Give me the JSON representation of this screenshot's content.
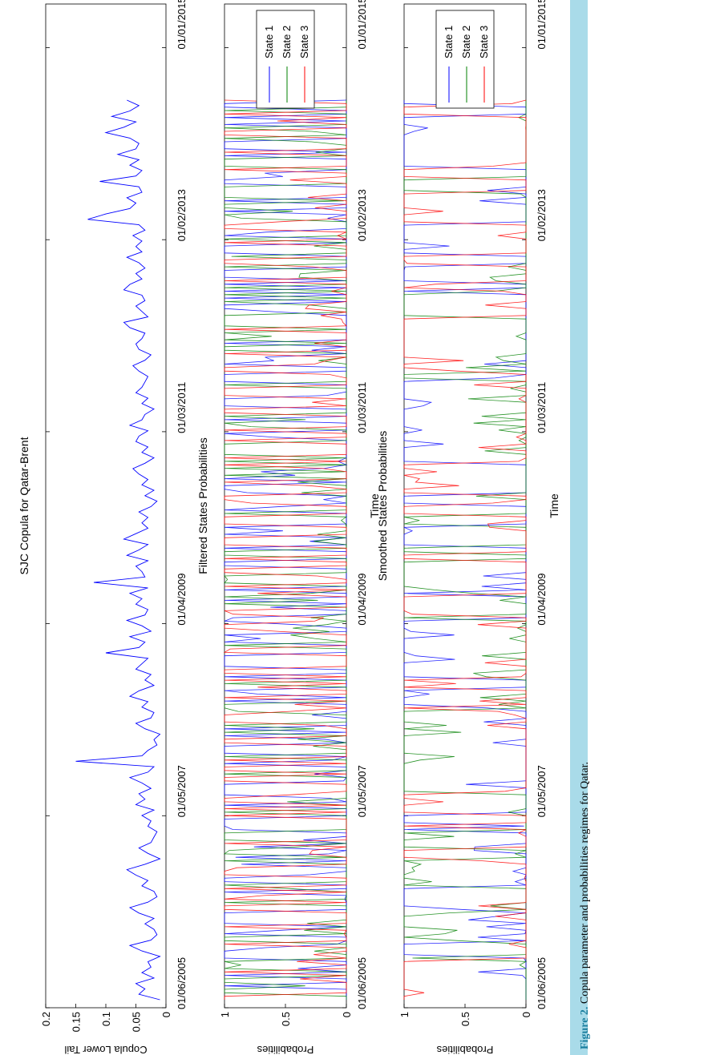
{
  "caption": {
    "label": "Figure 2.",
    "text": " Copula parameter and probabilities regimes for Qatar."
  },
  "colors": {
    "state1": "#0000ff",
    "state2": "#008000",
    "state3": "#ff0000",
    "copula_line": "#0000ff",
    "caption_bar": "#a9dbe9"
  },
  "chart_data": [
    {
      "type": "line",
      "title": "SJC Copula for Qatar-Brent",
      "xlabel": "",
      "ylabel": "Copula Lower Tail",
      "ylim": [
        0,
        0.2
      ],
      "yticks": [
        "0.2",
        "0.15",
        "0.1",
        "0.05",
        "0"
      ],
      "xticks": [
        "01/06/2005",
        "01/05/2007",
        "01/04/2009",
        "01/03/2011",
        "01/02/2013",
        "01/01/2015"
      ],
      "grid": false,
      "rotated": "90deg-counterclockwise",
      "series": [
        {
          "x_start": "01/06/2005",
          "x_end": "01/01/2015",
          "values": [
            0.01,
            0.045,
            0.035,
            0.05,
            0.02,
            0.04,
            0.025,
            0.03,
            0.01,
            0.04,
            0.06,
            0.025,
            0.015,
            0.02,
            0.035,
            0.02,
            0.045,
            0.06,
            0.03,
            0.015,
            0.02,
            0.04,
            0.03,
            0.05,
            0.065,
            0.035,
            0.01,
            0.03,
            0.045,
            0.025,
            0.02,
            0.015,
            0.03,
            0.025,
            0.04,
            0.02,
            0.05,
            0.035,
            0.045,
            0.025,
            0.04,
            0.06,
            0.03,
            0.02,
            0.15,
            0.04,
            0.03,
            0.015,
            0.02,
            0.01,
            0.035,
            0.05,
            0.025,
            0.02,
            0.04,
            0.03,
            0.06,
            0.045,
            0.02,
            0.035,
            0.025,
            0.05,
            0.04,
            0.03,
            0.1,
            0.045,
            0.035,
            0.06,
            0.025,
            0.04,
            0.065,
            0.035,
            0.03,
            0.05,
            0.04,
            0.06,
            0.03,
            0.12,
            0.035,
            0.04,
            0.05,
            0.03,
            0.065,
            0.045,
            0.03,
            0.07,
            0.05,
            0.03,
            0.04,
            0.03,
            0.045,
            0.025,
            0.015,
            0.035,
            0.02,
            0.04,
            0.03,
            0.045,
            0.055,
            0.035,
            0.02,
            0.04,
            0.03,
            0.05,
            0.045,
            0.03,
            0.06,
            0.04,
            0.035,
            0.02,
            0.04,
            0.03,
            0.05,
            0.04,
            0.035,
            0.03,
            0.045,
            0.055,
            0.035,
            0.025,
            0.045,
            0.05,
            0.04,
            0.035,
            0.06,
            0.07,
            0.03,
            0.04,
            0.05,
            0.035,
            0.04,
            0.07,
            0.06,
            0.04,
            0.05,
            0.035,
            0.045,
            0.065,
            0.04,
            0.05,
            0.04,
            0.055,
            0.035,
            0.045,
            0.13,
            0.1,
            0.06,
            0.05,
            0.065,
            0.04,
            0.045,
            0.11,
            0.05,
            0.04,
            0.06,
            0.045,
            0.08,
            0.05,
            0.045,
            0.06,
            0.1,
            0.07,
            0.05,
            0.09,
            0.06,
            0.045,
            0.065
          ]
        }
      ]
    },
    {
      "type": "line",
      "title": "Filtered States Probabilities",
      "xlabel": "Time",
      "ylabel": "Probabilities",
      "ylim": [
        0,
        1
      ],
      "yticks": [
        "1",
        "0.5",
        "0"
      ],
      "xticks": [
        "01/06/2005",
        "01/05/2007",
        "01/04/2009",
        "01/03/2011",
        "01/02/2013",
        "01/01/2015"
      ],
      "legend_position": "top-right",
      "grid": false,
      "rotated": "90deg-counterclockwise",
      "series": [
        {
          "name": "State 1"
        },
        {
          "name": "State 2"
        },
        {
          "name": "State 3"
        }
      ]
    },
    {
      "type": "line",
      "title": "Smoothed States Probabilities",
      "xlabel": "Time",
      "ylabel": "Probabilities",
      "ylim": [
        0,
        1
      ],
      "yticks": [
        "1",
        "0.5",
        "0"
      ],
      "xticks": [
        "01/06/2005",
        "01/05/2007",
        "01/04/2009",
        "01/03/2011",
        "01/02/2013",
        "01/01/2015"
      ],
      "legend_position": "top-right",
      "grid": false,
      "rotated": "90deg-counterclockwise",
      "series": [
        {
          "name": "State 1"
        },
        {
          "name": "State 2"
        },
        {
          "name": "State 3"
        }
      ]
    }
  ]
}
